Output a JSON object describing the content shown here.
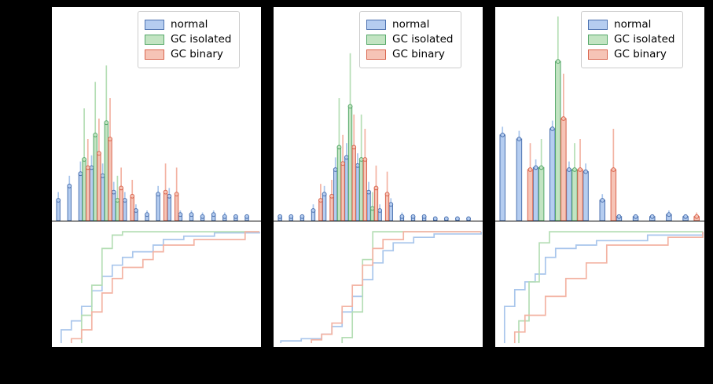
{
  "legend": {
    "items": [
      {
        "label": "normal",
        "series": "normal"
      },
      {
        "label": "GC isolated",
        "series": "GC isolated"
      },
      {
        "label": "GC binary",
        "series": "GC binary"
      }
    ]
  },
  "colors": {
    "normal": {
      "fill": "#b5cdf0",
      "edge": "#4c72b0",
      "line": "#a9c6ec"
    },
    "GC isolated": {
      "fill": "#c2e4c2",
      "edge": "#55a868",
      "line": "#b5deb5"
    },
    "GC binary": {
      "fill": "#f6c4b6",
      "edge": "#d9654e",
      "line": "#f3b3a3"
    }
  },
  "chart_data": [
    {
      "panel": "left",
      "histogram": {
        "type": "bar",
        "n_bins": 18,
        "ylim": [
          0,
          1
        ],
        "series": [
          {
            "name": "normal",
            "values": [
              0.1,
              0.17,
              0.23,
              0.26,
              0.22,
              0.14,
              0.1,
              0.05,
              0.03,
              0.13,
              0.12,
              0.03,
              0.03,
              0.02,
              0.03,
              0.02,
              0.02,
              0.02
            ],
            "err_hi": [
              0.14,
              0.22,
              0.29,
              0.32,
              0.28,
              0.19,
              0.14,
              0.08,
              0.05,
              0.17,
              0.16,
              0.05,
              0.05,
              0.04,
              0.05,
              0.04,
              0.03,
              0.03
            ]
          },
          {
            "name": "GC isolated",
            "values": [
              0,
              0,
              0.3,
              0.42,
              0.48,
              0.1,
              0,
              0,
              0,
              0,
              0,
              0,
              0,
              0,
              0,
              0,
              0,
              0
            ],
            "err_hi": [
              0,
              0,
              0.55,
              0.68,
              0.76,
              0.22,
              0,
              0,
              0,
              0,
              0,
              0,
              0,
              0,
              0,
              0,
              0,
              0
            ]
          },
          {
            "name": "GC binary",
            "values": [
              0,
              0,
              0.26,
              0.33,
              0.4,
              0.16,
              0.12,
              0,
              0,
              0.14,
              0.13,
              0,
              0,
              0,
              0,
              0,
              0,
              0
            ],
            "err_hi": [
              0,
              0,
              0.4,
              0.5,
              0.6,
              0.26,
              0.2,
              0,
              0,
              0.28,
              0.26,
              0,
              0,
              0,
              0,
              0,
              0,
              0
            ]
          }
        ]
      },
      "cdf": {
        "type": "line",
        "xlim": [
          0,
          1
        ],
        "ylim": [
          0,
          1.05
        ],
        "series": [
          {
            "name": "normal",
            "x": [
              0.03,
              0.08,
              0.13,
              0.18,
              0.23,
              0.28,
              0.33,
              0.38,
              0.48,
              0.53,
              0.63,
              0.78,
              1.0
            ],
            "y": [
              0.12,
              0.2,
              0.33,
              0.47,
              0.6,
              0.7,
              0.77,
              0.82,
              0.88,
              0.93,
              0.96,
              0.99,
              1.0
            ]
          },
          {
            "name": "GC isolated",
            "x": [
              0.13,
              0.18,
              0.23,
              0.28,
              0.33,
              1.0
            ],
            "y": [
              0.25,
              0.52,
              0.85,
              0.97,
              1.0,
              1.0
            ]
          },
          {
            "name": "GC binary",
            "x": [
              0.08,
              0.13,
              0.18,
              0.23,
              0.28,
              0.33,
              0.43,
              0.48,
              0.53,
              0.68,
              0.93,
              1.0
            ],
            "y": [
              0.04,
              0.12,
              0.28,
              0.45,
              0.58,
              0.68,
              0.75,
              0.82,
              0.88,
              0.93,
              1.0,
              1.0
            ]
          }
        ]
      }
    },
    {
      "panel": "middle",
      "histogram": {
        "type": "bar",
        "n_bins": 18,
        "ylim": [
          0,
          1
        ],
        "series": [
          {
            "name": "normal",
            "values": [
              0.02,
              0.02,
              0.02,
              0.05,
              0.13,
              0.25,
              0.31,
              0.27,
              0.14,
              0.05,
              0.08,
              0.02,
              0.02,
              0.02,
              0.01,
              0.01,
              0.01,
              0.01
            ],
            "err_hi": [
              0.03,
              0.03,
              0.03,
              0.08,
              0.17,
              0.31,
              0.38,
              0.33,
              0.19,
              0.08,
              0.11,
              0.04,
              0.03,
              0.03,
              0.02,
              0.02,
              0.02,
              0.02
            ]
          },
          {
            "name": "GC isolated",
            "values": [
              0,
              0,
              0,
              0,
              0,
              0.36,
              0.56,
              0.3,
              0.06,
              0,
              0,
              0,
              0,
              0,
              0,
              0,
              0,
              0
            ],
            "err_hi": [
              0,
              0,
              0,
              0,
              0,
              0.6,
              0.82,
              0.52,
              0.14,
              0,
              0,
              0,
              0,
              0,
              0,
              0,
              0,
              0
            ]
          },
          {
            "name": "GC binary",
            "values": [
              0,
              0,
              0,
              0.1,
              0.12,
              0.28,
              0.36,
              0.3,
              0.16,
              0.13,
              0,
              0,
              0,
              0,
              0,
              0,
              0,
              0
            ],
            "err_hi": [
              0,
              0,
              0,
              0.18,
              0.2,
              0.42,
              0.52,
              0.45,
              0.27,
              0.24,
              0,
              0,
              0,
              0,
              0,
              0,
              0,
              0
            ]
          }
        ]
      },
      "cdf": {
        "type": "line",
        "xlim": [
          0,
          1
        ],
        "ylim": [
          0,
          1.05
        ],
        "series": [
          {
            "name": "normal",
            "x": [
              0.02,
              0.12,
              0.22,
              0.27,
              0.32,
              0.37,
              0.42,
              0.47,
              0.52,
              0.57,
              0.67,
              0.77,
              1.0
            ],
            "y": [
              0.02,
              0.04,
              0.08,
              0.15,
              0.28,
              0.42,
              0.57,
              0.72,
              0.83,
              0.9,
              0.95,
              0.98,
              1.0
            ]
          },
          {
            "name": "GC isolated",
            "x": [
              0.32,
              0.37,
              0.42,
              0.47,
              1.0
            ],
            "y": [
              0.05,
              0.28,
              0.75,
              1.0,
              1.0
            ]
          },
          {
            "name": "GC binary",
            "x": [
              0.17,
              0.22,
              0.27,
              0.32,
              0.37,
              0.42,
              0.47,
              0.52,
              0.62,
              1.0
            ],
            "y": [
              0.03,
              0.08,
              0.18,
              0.33,
              0.52,
              0.7,
              0.85,
              0.93,
              1.0,
              1.0
            ]
          }
        ]
      }
    },
    {
      "panel": "right",
      "histogram": {
        "type": "bar",
        "n_bins": 12,
        "ylim": [
          0,
          1
        ],
        "series": [
          {
            "name": "normal",
            "values": [
              0.42,
              0.4,
              0.26,
              0.45,
              0.25,
              0.24,
              0.1,
              0.02,
              0.02,
              0.02,
              0.03,
              0.02
            ],
            "err_hi": [
              0.46,
              0.44,
              0.3,
              0.49,
              0.29,
              0.28,
              0.13,
              0.03,
              0.03,
              0.03,
              0.05,
              0.03
            ]
          },
          {
            "name": "GC isolated",
            "values": [
              0,
              0,
              0.26,
              0.78,
              0.25,
              0,
              0,
              0,
              0,
              0,
              0,
              0
            ],
            "err_hi": [
              0,
              0,
              0.4,
              1.0,
              0.38,
              0,
              0,
              0,
              0,
              0,
              0,
              0
            ]
          },
          {
            "name": "GC binary",
            "values": [
              0,
              0.25,
              0,
              0.5,
              0.25,
              0,
              0.25,
              0,
              0,
              0,
              0,
              0.02
            ],
            "err_hi": [
              0,
              0.38,
              0,
              0.72,
              0.4,
              0,
              0.45,
              0,
              0,
              0,
              0,
              0.04
            ]
          }
        ]
      },
      "cdf": {
        "type": "line",
        "xlim": [
          0,
          1
        ],
        "ylim": [
          0,
          1.05
        ],
        "series": [
          {
            "name": "normal",
            "x": [
              0.03,
              0.08,
              0.13,
              0.18,
              0.23,
              0.28,
              0.38,
              0.48,
              0.73,
              1.0
            ],
            "y": [
              0.33,
              0.48,
              0.55,
              0.62,
              0.77,
              0.85,
              0.88,
              0.92,
              0.97,
              1.0
            ]
          },
          {
            "name": "GC isolated",
            "x": [
              0.1,
              0.15,
              0.2,
              0.25,
              1.0
            ],
            "y": [
              0.2,
              0.55,
              0.9,
              1.0,
              1.0
            ]
          },
          {
            "name": "GC binary",
            "x": [
              0.08,
              0.13,
              0.23,
              0.33,
              0.43,
              0.53,
              0.83,
              1.0
            ],
            "y": [
              0.1,
              0.25,
              0.42,
              0.58,
              0.72,
              0.88,
              0.95,
              1.0
            ]
          }
        ]
      }
    }
  ]
}
